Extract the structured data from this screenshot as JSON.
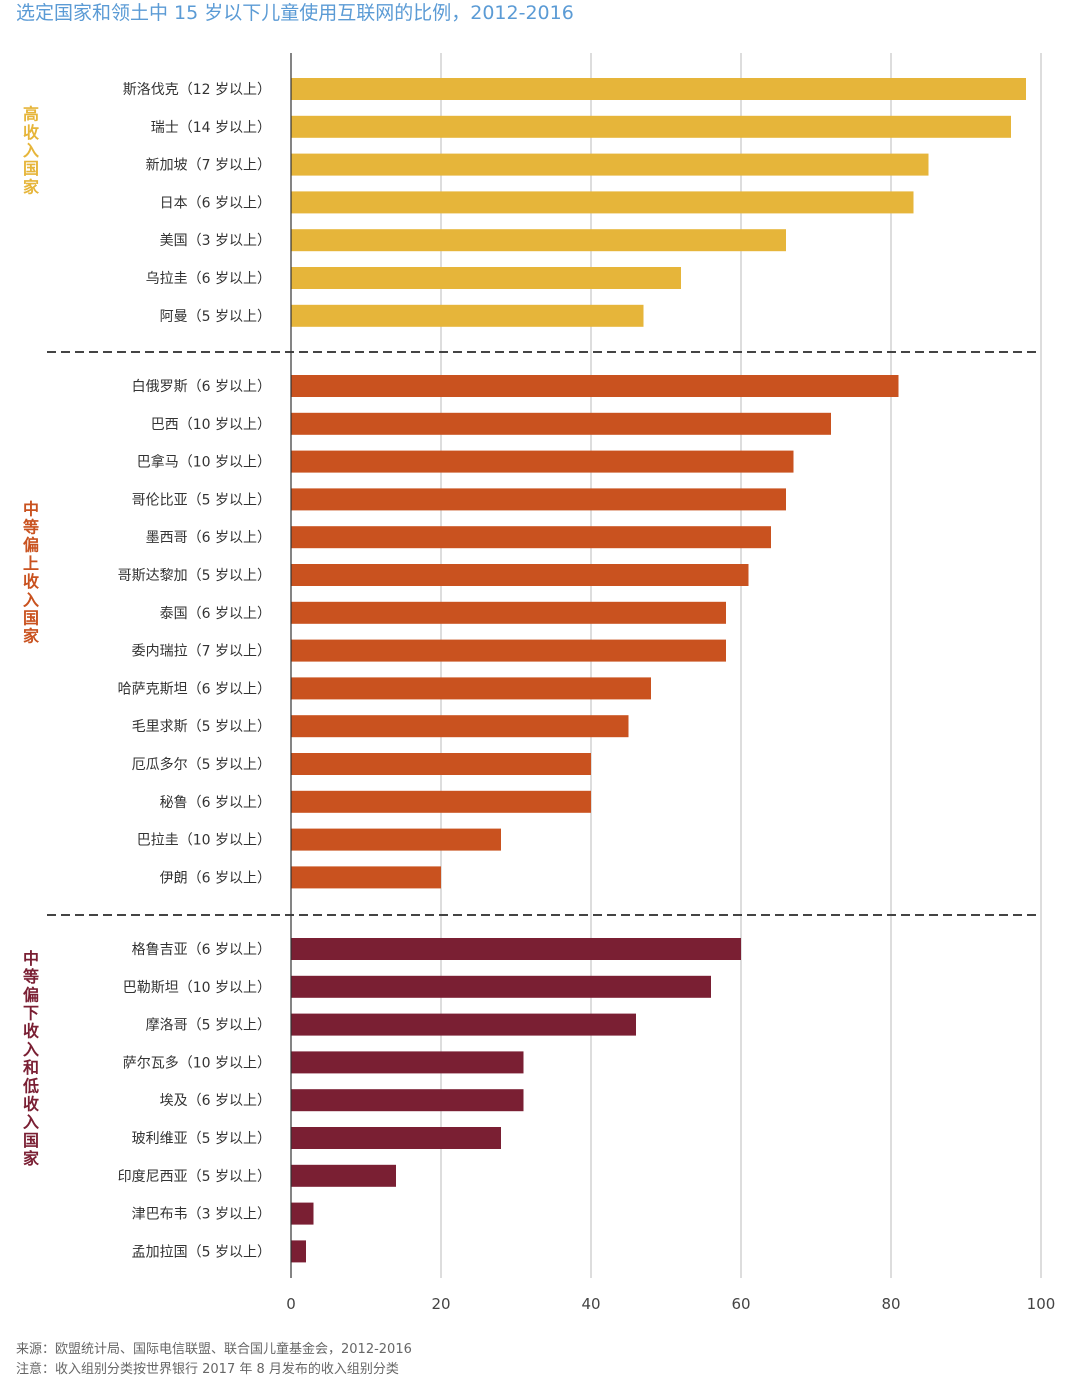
{
  "colors": {
    "title": "#5b9bd5",
    "high_income": "#e6b53a",
    "upper_middle": "#c9521f",
    "lower_middle": "#7a1f33",
    "gridline": "#bbbbbb",
    "axis": "#333333",
    "separator": "#444444"
  },
  "chart_data": {
    "type": "bar",
    "orientation": "horizontal",
    "title": "选定国家和领土中 15 岁以下儿童使用互联网的比例，2012-2016",
    "xlim": [
      0,
      100
    ],
    "x_ticks": [
      0,
      20,
      40,
      60,
      80,
      100
    ],
    "grid": true,
    "groups": [
      {
        "label": "高收入国家",
        "color_key": "high_income",
        "bars": [
          {
            "label": "斯洛伐克（12 岁以上）",
            "value": 98
          },
          {
            "label": "瑞士（14 岁以上）",
            "value": 96
          },
          {
            "label": "新加坡（7 岁以上）",
            "value": 85
          },
          {
            "label": "日本（6 岁以上）",
            "value": 83
          },
          {
            "label": "美国（3 岁以上）",
            "value": 66
          },
          {
            "label": "乌拉圭（6 岁以上）",
            "value": 52
          },
          {
            "label": "阿曼（5 岁以上）",
            "value": 47
          }
        ]
      },
      {
        "label": "中等偏上收入国家",
        "color_key": "upper_middle",
        "bars": [
          {
            "label": "白俄罗斯（6 岁以上）",
            "value": 81
          },
          {
            "label": "巴西（10 岁以上）",
            "value": 72
          },
          {
            "label": "巴拿马（10 岁以上）",
            "value": 67
          },
          {
            "label": "哥伦比亚（5 岁以上）",
            "value": 66
          },
          {
            "label": "墨西哥（6 岁以上）",
            "value": 64
          },
          {
            "label": "哥斯达黎加（5 岁以上）",
            "value": 61
          },
          {
            "label": "泰国（6 岁以上）",
            "value": 58
          },
          {
            "label": "委内瑞拉（7 岁以上）",
            "value": 58
          },
          {
            "label": "哈萨克斯坦（6 岁以上）",
            "value": 48
          },
          {
            "label": "毛里求斯（5 岁以上）",
            "value": 45
          },
          {
            "label": "厄瓜多尔（5 岁以上）",
            "value": 40
          },
          {
            "label": "秘鲁（6 岁以上）",
            "value": 40
          },
          {
            "label": "巴拉圭（10 岁以上）",
            "value": 28
          },
          {
            "label": "伊朗（6 岁以上）",
            "value": 20
          }
        ]
      },
      {
        "label": "中等偏下收入和低收入国家",
        "color_key": "lower_middle",
        "bars": [
          {
            "label": "格鲁吉亚（6 岁以上）",
            "value": 60
          },
          {
            "label": "巴勒斯坦（10 岁以上）",
            "value": 56
          },
          {
            "label": "摩洛哥（5 岁以上）",
            "value": 46
          },
          {
            "label": "萨尔瓦多（10 岁以上）",
            "value": 31
          },
          {
            "label": "埃及（6 岁以上）",
            "value": 31
          },
          {
            "label": "玻利维亚（5 岁以上）",
            "value": 28
          },
          {
            "label": "印度尼西亚（5 岁以上）",
            "value": 14
          },
          {
            "label": "津巴布韦（3 岁以上）",
            "value": 3
          },
          {
            "label": "孟加拉国（5 岁以上）",
            "value": 2
          }
        ]
      }
    ]
  },
  "footnotes": {
    "source": "来源：欧盟统计局、国际电信联盟、联合国儿童基金会，2012-2016",
    "note": "注意：收入组别分类按世界银行 2017 年 8 月发布的收入组别分类"
  }
}
